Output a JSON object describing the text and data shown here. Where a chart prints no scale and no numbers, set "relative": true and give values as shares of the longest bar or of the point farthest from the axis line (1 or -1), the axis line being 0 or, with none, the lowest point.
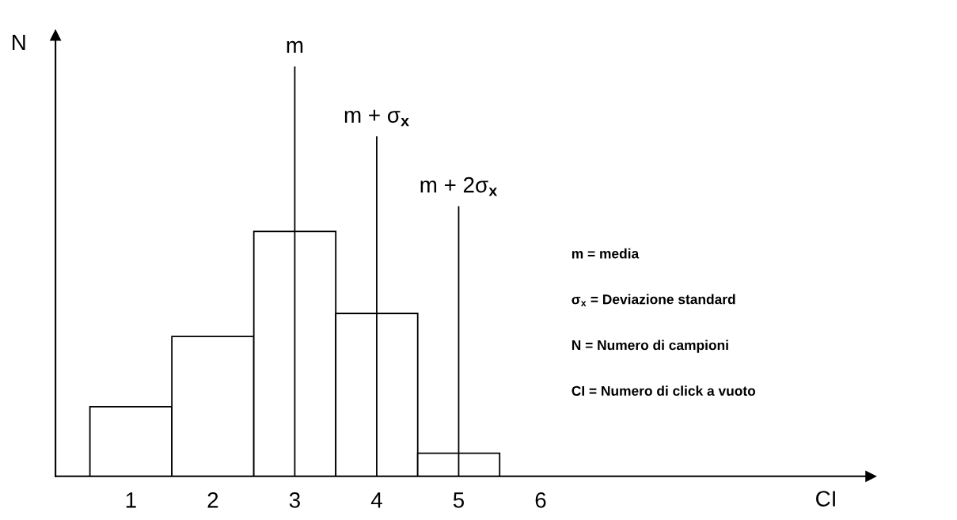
{
  "chart_data": {
    "type": "bar",
    "relative": true,
    "categories": [
      "1",
      "2",
      "3",
      "4",
      "5",
      "6"
    ],
    "values": [
      0.284,
      0.571,
      1,
      0.665,
      0.094,
      null
    ],
    "color": "#ffffff",
    "tick_labels": "x",
    "ref_lines": [
      {
        "axis": "x",
        "value": "3",
        "label": "m",
        "color": "#000000"
      },
      {
        "axis": "x",
        "value": "4",
        "label": "m + σ$_{x}$",
        "color": "#000000"
      },
      {
        "axis": "x",
        "value": "5",
        "label": "m + 2σ$_{x}$",
        "color": "#000000"
      }
    ],
    "annotations": [
      "N",
      "CI",
      "m = media",
      "σ$_{x}$ = Deviazione standard",
      "N = Numero di campioni",
      "CI = Numero di click a vuoto"
    ]
  }
}
